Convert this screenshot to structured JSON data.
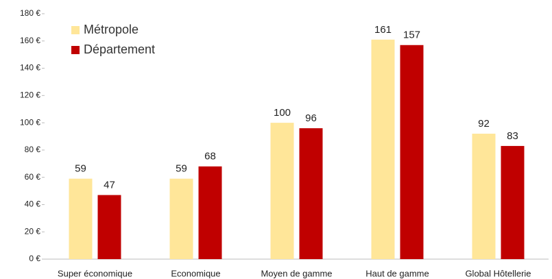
{
  "chart_data": {
    "type": "bar",
    "categories": [
      "Super économique",
      "Economique",
      "Moyen de gamme",
      "Haut de gamme",
      "Global Hôtellerie"
    ],
    "series": [
      {
        "name": "Métropole",
        "color": "#ffe699",
        "values": [
          59,
          59,
          100,
          161,
          92
        ]
      },
      {
        "name": "Département",
        "color": "#c00000",
        "values": [
          47,
          68,
          96,
          157,
          83
        ]
      }
    ],
    "ylim": [
      0,
      180
    ],
    "yticks": [
      {
        "value": 0,
        "label": "0 €"
      },
      {
        "value": 20,
        "label": "20 €"
      },
      {
        "value": 40,
        "label": "40 €"
      },
      {
        "value": 60,
        "label": "60 €"
      },
      {
        "value": 80,
        "label": "80 €"
      },
      {
        "value": 100,
        "label": "100 €"
      },
      {
        "value": 120,
        "label": "120 €"
      },
      {
        "value": 140,
        "label": "140 €"
      },
      {
        "value": 160,
        "label": "160 €"
      },
      {
        "value": 180,
        "label": "180 €"
      }
    ],
    "legend": "top-left"
  }
}
